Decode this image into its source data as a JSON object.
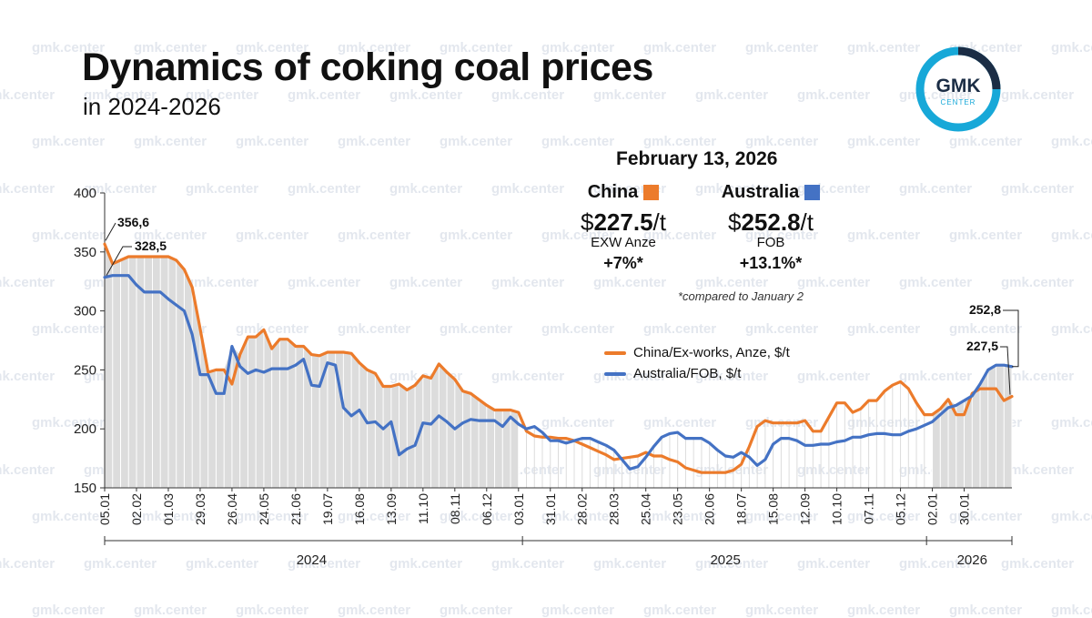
{
  "header": {
    "title": "Dynamics of coking coal prices",
    "subtitle": "in 2024-2026"
  },
  "logo": {
    "line1": "GMK",
    "line2": "CENTER"
  },
  "watermark_text": "gmk.center",
  "summary": {
    "date": "February 13, 2026",
    "china": {
      "label": "China",
      "currency": "$",
      "price": "227.5",
      "unit": "/t",
      "basis": "EXW Anze",
      "change": "+7%*"
    },
    "australia": {
      "label": "Australia",
      "currency": "$",
      "price": "252.8",
      "unit": "/t",
      "basis": "FOB",
      "change": "+13.1%*"
    },
    "footnote": "*compared to January 2"
  },
  "colors": {
    "china": "#ec7b2b",
    "australia": "#4472c4",
    "area": "#dcdcdc",
    "hatch": "#ffffff",
    "accent": "#17a8d8"
  },
  "chart_data": {
    "type": "line",
    "ylim": [
      150,
      400
    ],
    "yticks": [
      150,
      200,
      250,
      300,
      350,
      400
    ],
    "xticks": [
      "05.01",
      "02.02",
      "01.03",
      "29.03",
      "26.04",
      "24.05",
      "21.06",
      "19.07",
      "16.08",
      "13.09",
      "11.10",
      "08.11",
      "06.12",
      "03.01",
      "31.01",
      "28.02",
      "28.03",
      "25.04",
      "23.05",
      "20.06",
      "18.07",
      "15.08",
      "12.09",
      "10.10",
      "07.11",
      "05.12",
      "02.01",
      "30.01"
    ],
    "years": [
      "2024",
      "2025",
      "2026"
    ],
    "year_breaks_after_week": [
      52,
      104
    ],
    "annotations": [
      {
        "label": "356,6",
        "series": "China/Ex-works, Anze, $/t",
        "week": 0
      },
      {
        "label": "328,5",
        "series": "Australia/FOB, $/t",
        "week": 0
      },
      {
        "label": "252,8",
        "series": "Australia/FOB, $/t",
        "week": 110
      },
      {
        "label": "227,5",
        "series": "China/Ex-works, Anze, $/t",
        "week": 110
      }
    ],
    "series": [
      {
        "name": "China/Ex-works, Anze, $/t",
        "color": "#ec7b2b",
        "values": [
          356.6,
          340,
          343,
          346,
          346,
          346,
          346,
          346,
          346,
          343,
          335,
          320,
          285,
          248,
          250,
          250,
          238,
          263,
          278,
          278,
          284,
          268,
          276,
          276,
          270,
          270,
          263,
          262,
          265,
          265,
          265,
          264,
          256,
          250,
          247,
          236,
          236,
          238,
          233,
          237,
          245,
          243,
          255,
          248,
          242,
          232,
          230,
          225,
          220,
          216,
          216,
          216,
          214,
          198,
          194,
          193,
          193,
          192,
          192,
          190,
          187,
          184,
          181,
          178,
          174,
          175,
          176,
          177,
          180,
          177,
          177,
          174,
          172,
          167,
          165,
          163,
          163,
          163,
          163,
          165,
          170,
          185,
          202,
          207,
          205,
          205,
          205,
          205,
          207,
          198,
          198,
          210,
          222,
          222,
          214,
          217,
          224,
          224,
          232,
          237,
          240,
          234,
          222,
          212,
          212,
          217,
          225,
          212,
          212,
          230,
          234,
          234,
          234,
          224,
          227.5
        ]
      },
      {
        "name": "Australia/FOB, $/t",
        "color": "#4472c4",
        "values": [
          328.5,
          330,
          330,
          330,
          322,
          316,
          316,
          316,
          310,
          305,
          300,
          280,
          246,
          246,
          230,
          230,
          270,
          253,
          247,
          250,
          248,
          251,
          251,
          251,
          254,
          259,
          237,
          236,
          256,
          254,
          218,
          211,
          216,
          205,
          206,
          200,
          206,
          178,
          183,
          186,
          205,
          204,
          211,
          206,
          200,
          205,
          208,
          207,
          207,
          207,
          202,
          210,
          204,
          200,
          202,
          197,
          190,
          190,
          188,
          190,
          192,
          192,
          189,
          186,
          182,
          174,
          166,
          168,
          176,
          185,
          193,
          196,
          197,
          192,
          192,
          192,
          188,
          182,
          177,
          176,
          180,
          176,
          169,
          174,
          187,
          192,
          192,
          190,
          186,
          186,
          187,
          187,
          189,
          190,
          193,
          193,
          195,
          196,
          196,
          195,
          195,
          198,
          200,
          203,
          206,
          212,
          218,
          220,
          224,
          228,
          238,
          250,
          254,
          254,
          252.8
        ]
      }
    ]
  }
}
